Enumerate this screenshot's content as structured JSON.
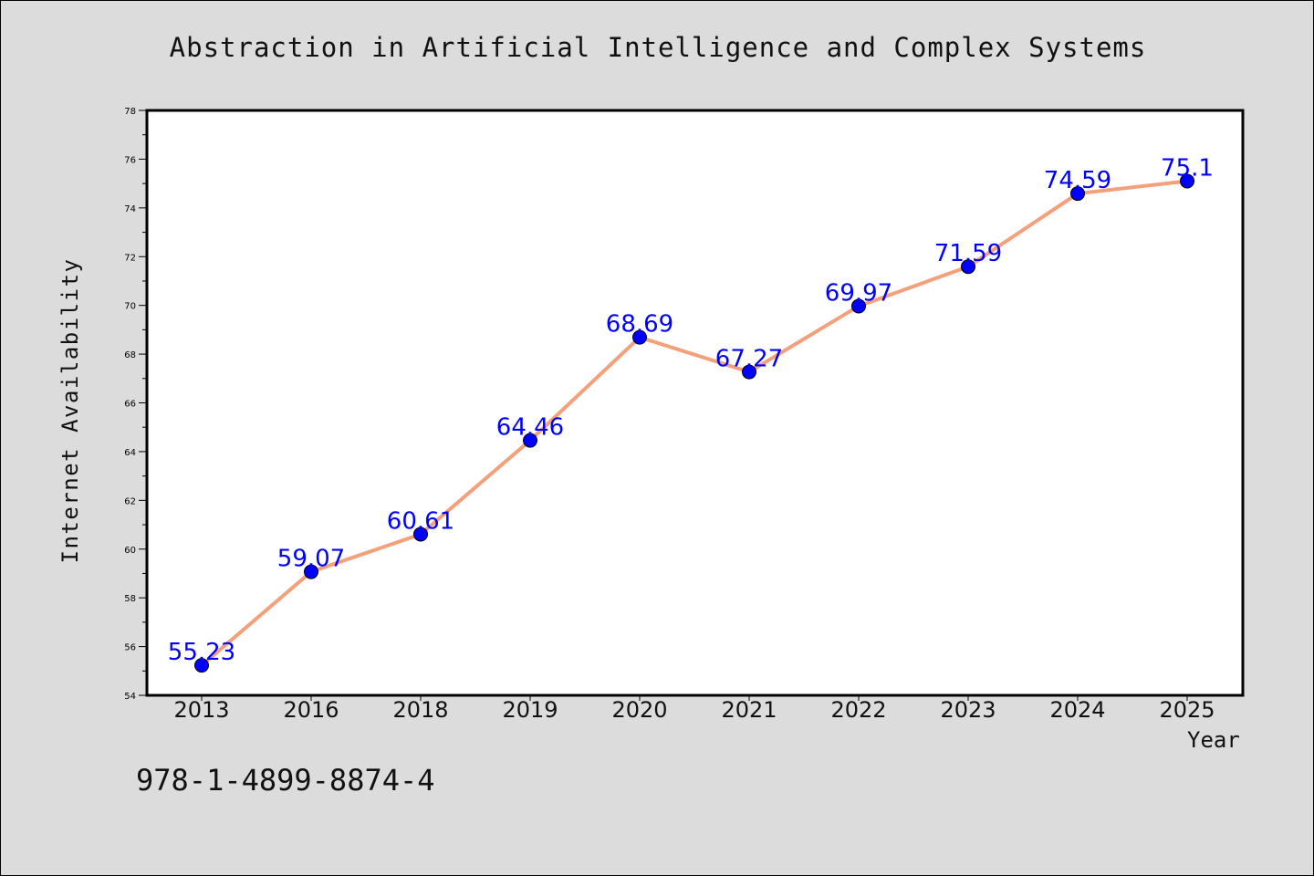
{
  "chart_data": {
    "type": "line",
    "title": "Abstraction in Artificial Intelligence and Complex Systems",
    "xlabel": "Year",
    "ylabel": "Internet Availability",
    "categories": [
      "2013",
      "2016",
      "2018",
      "2019",
      "2020",
      "2021",
      "2022",
      "2023",
      "2024",
      "2025"
    ],
    "series": [
      {
        "values": [
          55.23,
          59.07,
          60.61,
          64.46,
          68.69,
          67.27,
          69.97,
          71.59,
          74.59,
          75.1
        ],
        "data_labels": [
          "55.23",
          "59.07",
          "60.61",
          "64.46",
          "68.69",
          "67.27",
          "69.97",
          "71.59",
          "74.59",
          "75.1"
        ],
        "line_color": "#f4a07a",
        "marker_color": "#0000ff"
      }
    ],
    "ylim": [
      54,
      78
    ],
    "yticks": [
      "54",
      "56",
      "58",
      "60",
      "62",
      "64",
      "66",
      "68",
      "70",
      "72",
      "74",
      "76",
      "78"
    ],
    "grid": false,
    "legend": "none"
  },
  "footer": {
    "isbn": "978-1-4899-8874-4"
  },
  "colors": {
    "background": "#dcdcdc",
    "plot_background": "#ffffff",
    "label_color": "#0000ff"
  }
}
